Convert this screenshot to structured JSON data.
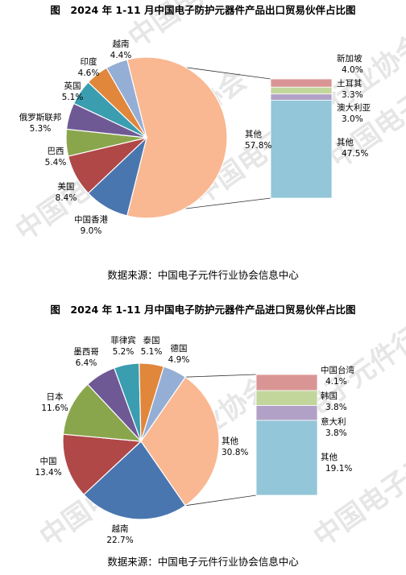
{
  "chart_data": [
    {
      "type": "pie",
      "title": "图　2024 年 1-11 月中国电子防护元器件产品出口贸易伙伴占比图",
      "source": "数据来源：中国电子元件行业协会信息中心",
      "main_pie": [
        {
          "name": "其他",
          "value": 57.8,
          "label": "57.8%",
          "color": "#f9b892"
        },
        {
          "name": "中国香港",
          "value": 9.0,
          "label": "9.0%",
          "color": "#4a76b0"
        },
        {
          "name": "美国",
          "value": 8.4,
          "label": "8.4%",
          "color": "#b04848"
        },
        {
          "name": "巴西",
          "value": 5.4,
          "label": "5.4%",
          "color": "#8aa64c"
        },
        {
          "name": "俄罗斯联邦",
          "value": 5.3,
          "label": "5.3%",
          "color": "#6f5995"
        },
        {
          "name": "英国",
          "value": 5.1,
          "label": "5.1%",
          "color": "#3b9db0"
        },
        {
          "name": "印度",
          "value": 4.6,
          "label": "4.6%",
          "color": "#e0873c"
        },
        {
          "name": "越南",
          "value": 4.4,
          "label": "4.4%",
          "color": "#95aed6"
        }
      ],
      "breakdown_bar": [
        {
          "name": "新加坡",
          "value": 4.0,
          "label": "4.0%",
          "color": "#d99594"
        },
        {
          "name": "土耳其",
          "value": 3.3,
          "label": "3.3%",
          "color": "#c2d69b"
        },
        {
          "name": "澳大利亚",
          "value": 3.0,
          "label": "3.0%",
          "color": "#b2a1c7"
        },
        {
          "name": "其他",
          "value": 47.5,
          "label": "47.5%",
          "color": "#92c6d8"
        }
      ]
    },
    {
      "type": "pie",
      "title": "图　2024 年 1-11 月中国电子防护元器件产品进口贸易伙伴占比图",
      "source": "数据来源：中国电子元件行业协会信息中心",
      "main_pie": [
        {
          "name": "其他",
          "value": 30.8,
          "label": "30.8%",
          "color": "#f9b892"
        },
        {
          "name": "越南",
          "value": 22.7,
          "label": "22.7%",
          "color": "#4a76b0"
        },
        {
          "name": "中国",
          "value": 13.4,
          "label": "13.4%",
          "color": "#b04848"
        },
        {
          "name": "日本",
          "value": 11.6,
          "label": "11.6%",
          "color": "#8aa64c"
        },
        {
          "name": "墨西哥",
          "value": 6.4,
          "label": "6.4%",
          "color": "#6f5995"
        },
        {
          "name": "菲律宾",
          "value": 5.2,
          "label": "5.2%",
          "color": "#3b9db0"
        },
        {
          "name": "泰国",
          "value": 5.1,
          "label": "5.1%",
          "color": "#e0873c"
        },
        {
          "name": "德国",
          "value": 4.9,
          "label": "4.9%",
          "color": "#95aed6"
        }
      ],
      "breakdown_bar": [
        {
          "name": "中国台湾",
          "value": 4.1,
          "label": "4.1%",
          "color": "#d99594"
        },
        {
          "name": "韩国",
          "value": 3.8,
          "label": "3.8%",
          "color": "#c2d69b"
        },
        {
          "name": "意大利",
          "value": 3.8,
          "label": "3.8%",
          "color": "#b2a1c7"
        },
        {
          "name": "其他",
          "value": 19.1,
          "label": "19.1%",
          "color": "#92c6d8"
        }
      ]
    }
  ],
  "watermark": "中国电子元件行业协会"
}
